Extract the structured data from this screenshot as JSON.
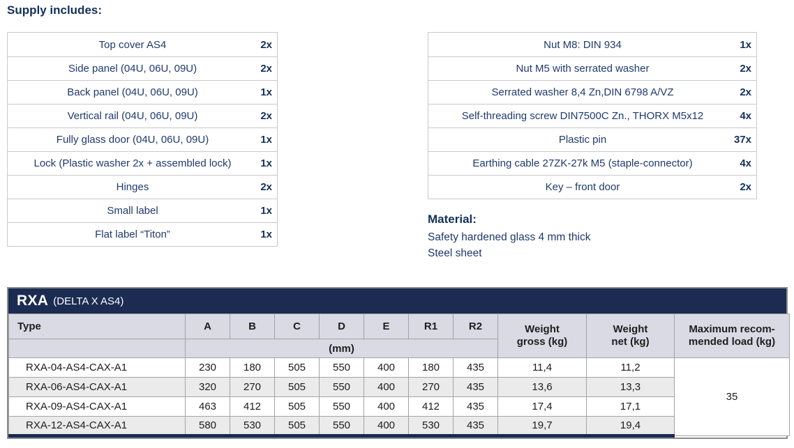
{
  "supply": {
    "heading": "Supply includes:",
    "left": [
      {
        "item": "Top cover AS4",
        "qty": "2x"
      },
      {
        "item": "Side panel (04U, 06U, 09U)",
        "qty": "2x"
      },
      {
        "item": "Back panel (04U, 06U, 09U)",
        "qty": "1x"
      },
      {
        "item": "Vertical rail (04U, 06U, 09U)",
        "qty": "2x"
      },
      {
        "item": "Fully glass door (04U, 06U, 09U)",
        "qty": "1x"
      },
      {
        "item": "Lock (Plastic washer 2x + assembled lock)",
        "qty": "1x"
      },
      {
        "item": "Hinges",
        "qty": "2x"
      },
      {
        "item": "Small label",
        "qty": "1x"
      },
      {
        "item": "Flat label “Titon”",
        "qty": "1x"
      }
    ],
    "right": [
      {
        "item": "Nut M8: DIN 934",
        "qty": "1x"
      },
      {
        "item": "Nut M5 with serrated washer",
        "qty": "2x"
      },
      {
        "item": "Serrated washer 8,4 Zn,DIN 6798 A/VZ",
        "qty": "2x"
      },
      {
        "item": "Self-threading screw DIN7500C Zn., THORX M5x12",
        "qty": "4x"
      },
      {
        "item": "Plastic pin",
        "qty": "37x"
      },
      {
        "item": "Earthing cable 27ZK-27k M5 (staple-connector)",
        "qty": "4x"
      },
      {
        "item": "Key – front door",
        "qty": "2x"
      }
    ]
  },
  "material": {
    "heading": "Material:",
    "lines": [
      "Safety hardened glass 4 mm thick",
      "Steel sheet"
    ]
  },
  "spec": {
    "title": "RXA",
    "subtitle": "(DELTA X AS4)",
    "type_header": "Type",
    "dim_headers": [
      "A",
      "B",
      "C",
      "D",
      "E",
      "R1",
      "R2"
    ],
    "mm_label": "(mm)",
    "weight_gross_header": "Weight\ngross (kg)",
    "weight_net_header": "Weight\nnet (kg)",
    "max_load_header": "Maximum recom-\nmended load (kg)",
    "max_load_value": "35",
    "rows": [
      {
        "type": "RXA-04-AS4-CAX-A1",
        "a": "230",
        "b": "180",
        "c": "505",
        "d": "550",
        "e": "400",
        "r1": "180",
        "r2": "435",
        "gross": "11,4",
        "net": "11,2"
      },
      {
        "type": "RXA-06-AS4-CAX-A1",
        "a": "320",
        "b": "270",
        "c": "505",
        "d": "550",
        "e": "400",
        "r1": "270",
        "r2": "435",
        "gross": "13,6",
        "net": "13,3"
      },
      {
        "type": "RXA-09-AS4-CAX-A1",
        "a": "463",
        "b": "412",
        "c": "505",
        "d": "550",
        "e": "400",
        "r1": "412",
        "r2": "435",
        "gross": "17,4",
        "net": "17,1"
      },
      {
        "type": "RXA-12-AS4-CAX-A1",
        "a": "580",
        "b": "530",
        "c": "505",
        "d": "550",
        "e": "400",
        "r1": "530",
        "r2": "435",
        "gross": "19,7",
        "net": "19,4"
      }
    ]
  },
  "colors": {
    "navy": "#1b2b52",
    "header_bg": "#d9dae3",
    "stripe_bg": "#ebebeb",
    "border_gray": "#a3a3a3",
    "text_navy": "#1f3a6d"
  }
}
